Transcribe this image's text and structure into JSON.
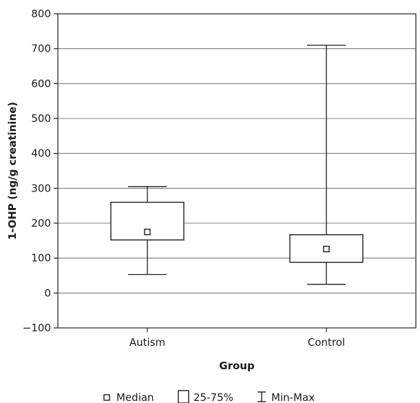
{
  "chart_data": {
    "type": "boxplot",
    "xlabel": "Group",
    "ylabel": "1-OHP (ng/g creatinine)",
    "ylim": [
      -100,
      800
    ],
    "yticks": [
      -100,
      0,
      100,
      200,
      300,
      400,
      500,
      600,
      700,
      800
    ],
    "ytick_labels": [
      "−100",
      "0",
      "100",
      "200",
      "300",
      "400",
      "500",
      "600",
      "700",
      "800"
    ],
    "grid": true,
    "categories": [
      "Autism",
      "Control"
    ],
    "boxes": [
      {
        "group": "Autism",
        "min": 53,
        "q1": 152,
        "median": 175,
        "q3": 260,
        "max": 305
      },
      {
        "group": "Control",
        "min": 25,
        "q1": 88,
        "median": 126,
        "q3": 167,
        "max": 710
      }
    ],
    "legend": {
      "placement": "bottom",
      "entries": [
        {
          "symbol": "median",
          "label": "Median"
        },
        {
          "symbol": "box",
          "label": "25-75%"
        },
        {
          "symbol": "whisker",
          "label": "Min-Max"
        }
      ]
    },
    "colors": {
      "line": "#1a1a1a",
      "grid": "#555555",
      "background": "#ffffff"
    }
  }
}
